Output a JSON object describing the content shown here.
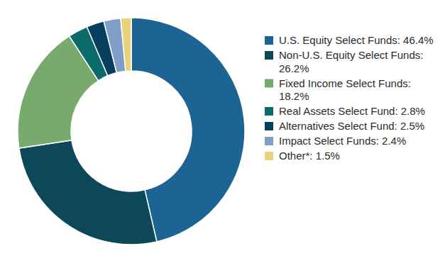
{
  "chart_data": {
    "type": "pie",
    "categories": [
      "U.S. Equity Select Funds:",
      "Non-U.S. Equity Select Funds:",
      "Fixed Income Select Funds:",
      "Real Assets Select Fund:",
      "Alternatives Select Fund:",
      "Impact Select Funds:",
      "Other*:"
    ],
    "values": [
      46.4,
      26.2,
      18.2,
      2.8,
      2.5,
      2.4,
      1.5
    ],
    "value_labels": [
      "46.4%",
      "26.2%",
      "18.2%",
      "2.8%",
      "2.5%",
      "2.4%",
      "1.5%"
    ],
    "colors": [
      "#1b6494",
      "#0c4858",
      "#7aa96e",
      "#0b6a6a",
      "#083f5f",
      "#7f9dc6",
      "#e9d27c"
    ],
    "legend": "right"
  }
}
